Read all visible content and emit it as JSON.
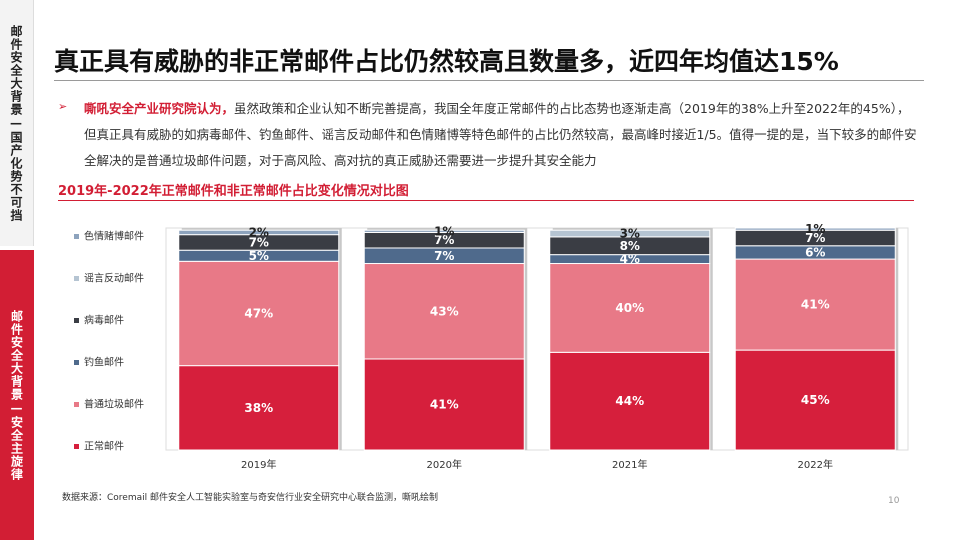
{
  "sidebar": {
    "top_label": "邮件安全大背景—国产化势不可挡",
    "bottom_label": "邮件安全大背景—安全主旋律"
  },
  "title": "真正具有威胁的非正常邮件占比仍然较高且数量多，近四年均值达15%",
  "paragraph": {
    "bullet": "➢",
    "highlight": "嘶吼安全产业研究院认为，",
    "text": "虽然政策和企业认知不断完善提高，我国全年度正常邮件的占比态势也逐渐走高（2019年的38%上升至2022年的45%），但真正具有威胁的如病毒邮件、钓鱼邮件、谣言反动邮件和色情赌博等特色邮件的占比仍然较高，最高峰时接近1/5。值得一提的是，当下较多的邮件安全解决的是普通垃圾邮件问题，对于高风险、高对抗的真正威胁还需要进一步提升其安全能力"
  },
  "chart_title": "2019年-2022年正常邮件和非正常邮件占比变化情况对比图",
  "chart_data": {
    "type": "bar",
    "stacked": true,
    "categories": [
      "2019年",
      "2020年",
      "2021年",
      "2022年"
    ],
    "series": [
      {
        "name": "正常邮件",
        "color": "#d61f3c",
        "values": [
          38,
          41,
          44,
          45
        ],
        "label_color": "#ffffff"
      },
      {
        "name": "普通垃圾邮件",
        "color": "#e87987",
        "values": [
          47,
          43,
          40,
          41
        ],
        "label_color": "#ffffff"
      },
      {
        "name": "钓鱼邮件",
        "color": "#4f6a8c",
        "values": [
          5,
          7,
          4,
          6
        ],
        "label_color": "#ffffff"
      },
      {
        "name": "病毒邮件",
        "color": "#3a3d44",
        "values": [
          7,
          7,
          8,
          7
        ],
        "label_color": "#ffffff"
      },
      {
        "name": "谣言反动邮件",
        "color": "#b5c4d2",
        "values": [
          0,
          0,
          3,
          0
        ],
        "label_color": "#222222"
      },
      {
        "name": "色情赌博邮件",
        "color": "#8da3bd",
        "values": [
          2,
          1,
          0,
          1
        ],
        "label_color": "#222222"
      }
    ],
    "data_labels": [
      [
        "38%",
        "41%",
        "44%",
        "45%"
      ],
      [
        "47%",
        "43%",
        "40%",
        "41%"
      ],
      [
        "5%",
        "7%",
        "4%",
        "6%"
      ],
      [
        "7%",
        "7%",
        "8%",
        "7%"
      ],
      [
        "",
        "",
        "3%",
        ""
      ],
      [
        "2%",
        "1%",
        "",
        "1%"
      ]
    ],
    "ylim": [
      0,
      100
    ],
    "legend_position": "left",
    "grid": false
  },
  "source": "数据来源：Coremail 邮件安全人工智能实验室与奇安信行业安全研究中心联合监测，嘶吼绘制",
  "page_number": "10"
}
